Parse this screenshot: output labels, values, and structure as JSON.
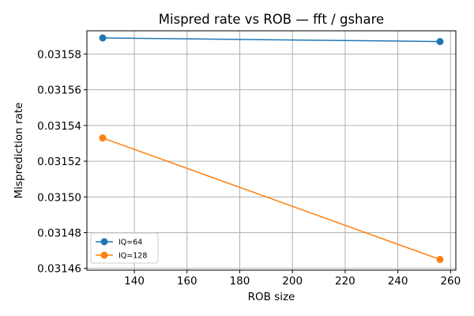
{
  "chart_data": {
    "type": "line",
    "title": "Mispred rate vs ROB — fft / gshare",
    "xlabel": "ROB size",
    "ylabel": "Misprediction rate",
    "xlim": [
      122,
      262
    ],
    "ylim": [
      0.031459,
      0.031593
    ],
    "xticks": [
      140,
      160,
      180,
      200,
      220,
      240,
      260
    ],
    "yticks": [
      0.03146,
      0.03148,
      0.0315,
      0.03152,
      0.03154,
      0.03156,
      0.03158
    ],
    "xtick_labels": [
      "140",
      "160",
      "180",
      "200",
      "220",
      "240",
      "260"
    ],
    "ytick_labels": [
      "0.03146",
      "0.03148",
      "0.03150",
      "0.03152",
      "0.03154",
      "0.03156",
      "0.03158"
    ],
    "grid": true,
    "legend_position": "lower-left",
    "series": [
      {
        "name": "IQ=64",
        "color": "#1f77b4",
        "x": [
          128,
          256
        ],
        "y": [
          0.031589,
          0.031587
        ]
      },
      {
        "name": "IQ=128",
        "color": "#ff7f0e",
        "x": [
          128,
          256
        ],
        "y": [
          0.031533,
          0.031465
        ]
      }
    ]
  }
}
